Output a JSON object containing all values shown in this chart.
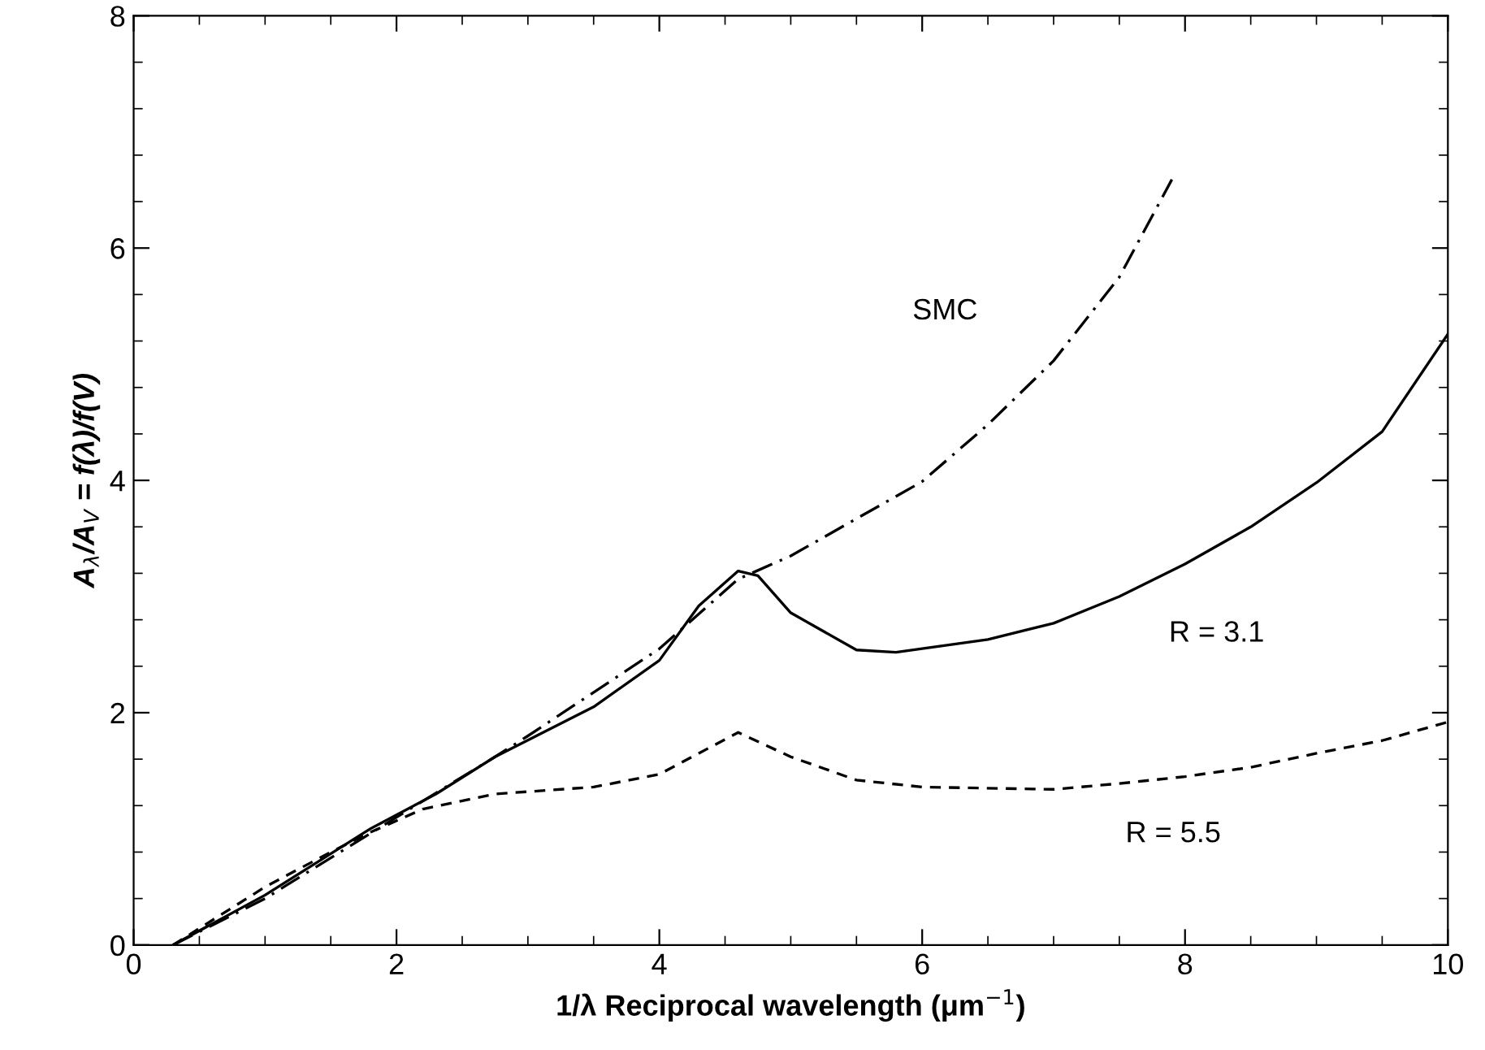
{
  "chart_data": {
    "type": "line",
    "xlabel": "1/λ Reciprocal wavelength (μm$^{−1}$)",
    "ylabel": "A$_{λ}$/A$_{V}$ = f(λ)/f(V)",
    "xlim": [
      0,
      10
    ],
    "ylim": [
      0,
      8
    ],
    "xticks": [
      0,
      2,
      4,
      6,
      8,
      10
    ],
    "yticks": [
      0,
      2,
      4,
      6,
      8
    ],
    "grid": false,
    "legend": false,
    "marker": "none",
    "series": [
      {
        "name": "SMC",
        "color": "#000000",
        "line_style": "dashdot",
        "x": [
          0.3,
          1,
          2,
          2.75,
          3,
          4,
          4.6,
          5,
          5.5,
          6,
          6.5,
          7,
          7.5,
          7.9
        ],
        "values": [
          0,
          0.4,
          1.1,
          1.62,
          1.8,
          2.55,
          3.15,
          3.35,
          3.67,
          3.99,
          4.48,
          5.03,
          5.75,
          6.59
        ]
      },
      {
        "name": "R = 3.1",
        "color": "#000000",
        "line_style": "solid",
        "x": [
          0.3,
          1,
          1.8,
          2.3,
          2.75,
          3.5,
          4,
          4.3,
          4.6,
          4.75,
          5,
          5.5,
          5.8,
          6.5,
          7,
          7.5,
          8,
          8.5,
          9,
          9.5,
          10
        ],
        "values": [
          0,
          0.43,
          1.0,
          1.3,
          1.62,
          2.05,
          2.45,
          2.92,
          3.22,
          3.18,
          2.86,
          2.54,
          2.52,
          2.63,
          2.77,
          3.0,
          3.28,
          3.6,
          3.98,
          4.42,
          5.26
        ]
      },
      {
        "name": "R = 5.5",
        "color": "#000000",
        "line_style": "dashed",
        "x": [
          0.3,
          1,
          1.5,
          1.8,
          2.2,
          2.75,
          3.5,
          4,
          4.3,
          4.6,
          5,
          5.5,
          6,
          7,
          7.5,
          8,
          8.5,
          9,
          9.5,
          10
        ],
        "values": [
          0,
          0.5,
          0.8,
          0.97,
          1.17,
          1.3,
          1.36,
          1.47,
          1.65,
          1.83,
          1.62,
          1.42,
          1.36,
          1.34,
          1.39,
          1.45,
          1.53,
          1.65,
          1.76,
          1.92
        ]
      }
    ]
  }
}
